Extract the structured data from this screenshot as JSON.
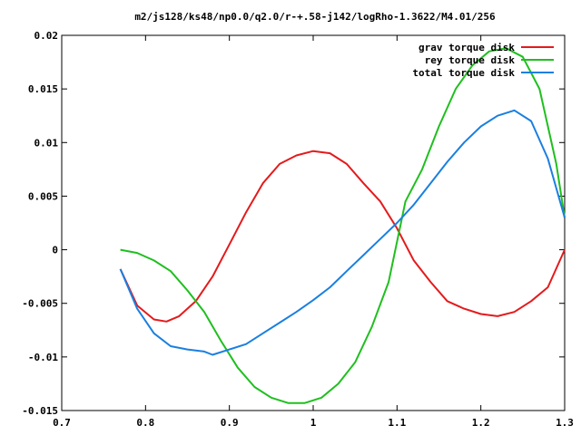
{
  "chart_data": {
    "type": "line",
    "title": "m2/js128/ks48/np0.0/q2.0/r-+.58-j142/logRho-1.3622/M4.01/256",
    "xlabel": "",
    "ylabel": "",
    "xlim": [
      0.7,
      1.3
    ],
    "ylim": [
      -0.015,
      0.02
    ],
    "xticks": [
      0.7,
      0.8,
      0.9,
      1.0,
      1.1,
      1.2,
      1.3
    ],
    "xtick_labels": [
      "0.7",
      "0.8",
      "0.9",
      "1",
      "1.1",
      "1.2",
      "1.3"
    ],
    "yticks": [
      -0.015,
      -0.01,
      -0.005,
      0,
      0.005,
      0.01,
      0.015,
      0.02
    ],
    "ytick_labels": [
      "-0.015",
      "-0.01",
      "-0.005",
      "0",
      "0.005",
      "0.01",
      "0.015",
      "0.02"
    ],
    "grid": false,
    "legend_position": "top-right",
    "series": [
      {
        "name": "grav torque disk",
        "color": "#e41a1c",
        "x": [
          0.77,
          0.79,
          0.81,
          0.825,
          0.84,
          0.86,
          0.88,
          0.9,
          0.92,
          0.94,
          0.96,
          0.98,
          1.0,
          1.02,
          1.04,
          1.06,
          1.08,
          1.1,
          1.12,
          1.14,
          1.16,
          1.18,
          1.2,
          1.22,
          1.24,
          1.26,
          1.28,
          1.3
        ],
        "values": [
          -0.0018,
          -0.0052,
          -0.0065,
          -0.0067,
          -0.0062,
          -0.0048,
          -0.0025,
          0.0005,
          0.0035,
          0.0062,
          0.008,
          0.0088,
          0.0092,
          0.009,
          0.008,
          0.0062,
          0.0045,
          0.002,
          -0.001,
          -0.003,
          -0.0048,
          -0.0055,
          -0.006,
          -0.0062,
          -0.0058,
          -0.0048,
          -0.0035,
          0.0
        ]
      },
      {
        "name": "rey torque disk",
        "color": "#1fbf1f",
        "x": [
          0.77,
          0.79,
          0.81,
          0.83,
          0.85,
          0.87,
          0.89,
          0.91,
          0.93,
          0.95,
          0.97,
          0.99,
          1.01,
          1.03,
          1.05,
          1.07,
          1.09,
          1.11,
          1.13,
          1.15,
          1.17,
          1.19,
          1.21,
          1.23,
          1.25,
          1.27,
          1.29,
          1.3
        ],
        "values": [
          0.0,
          -0.0003,
          -0.001,
          -0.002,
          -0.0038,
          -0.0058,
          -0.0085,
          -0.011,
          -0.0128,
          -0.0138,
          -0.0143,
          -0.0143,
          -0.0138,
          -0.0125,
          -0.0105,
          -0.0072,
          -0.003,
          0.0045,
          0.0075,
          0.0115,
          0.015,
          0.0172,
          0.0185,
          0.0188,
          0.018,
          0.015,
          0.008,
          0.003
        ]
      },
      {
        "name": "total torque disk",
        "color": "#1a7fe0",
        "x": [
          0.77,
          0.79,
          0.81,
          0.83,
          0.85,
          0.87,
          0.88,
          0.9,
          0.92,
          0.94,
          0.96,
          0.98,
          1.0,
          1.02,
          1.04,
          1.06,
          1.08,
          1.1,
          1.12,
          1.14,
          1.16,
          1.18,
          1.2,
          1.22,
          1.24,
          1.26,
          1.28,
          1.3
        ],
        "values": [
          -0.0018,
          -0.0055,
          -0.0078,
          -0.009,
          -0.0093,
          -0.0095,
          -0.0098,
          -0.0093,
          -0.0088,
          -0.0078,
          -0.0068,
          -0.0058,
          -0.0047,
          -0.0035,
          -0.002,
          -0.0005,
          0.001,
          0.0025,
          0.0042,
          0.0062,
          0.0082,
          0.01,
          0.0115,
          0.0125,
          0.013,
          0.012,
          0.0085,
          0.003
        ]
      }
    ]
  }
}
